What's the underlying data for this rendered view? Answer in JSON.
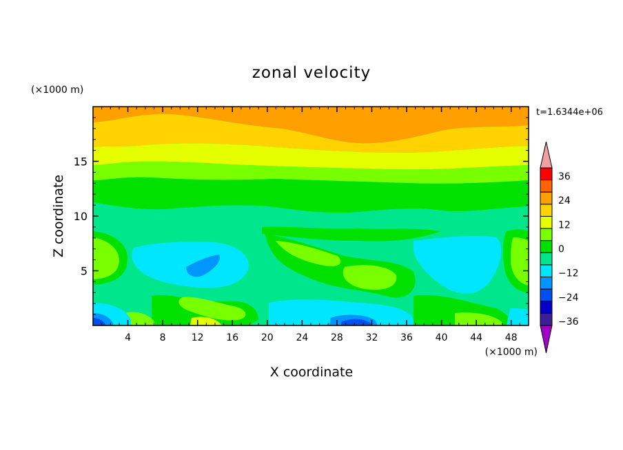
{
  "chart_data": {
    "type": "heatmap",
    "title": "zonal velocity",
    "xlabel": "X coordinate",
    "ylabel": "Z coordinate",
    "x_unit": "(×1000 m)",
    "y_unit": "(×1000 m)",
    "time_label": "t=1.6344e+06",
    "xlim": [
      0,
      50
    ],
    "ylim": [
      0,
      20
    ],
    "x_ticks": [
      4,
      8,
      12,
      16,
      20,
      24,
      28,
      32,
      36,
      40,
      44,
      48
    ],
    "x_tick_labels": [
      "4",
      "8",
      "12",
      "16",
      "20",
      "24",
      "28",
      "32",
      "36",
      "40",
      "44",
      "48"
    ],
    "y_ticks": [
      5,
      10,
      15
    ],
    "y_tick_labels": [
      "5",
      "10",
      "15"
    ],
    "colorbar": {
      "levels": [
        -36,
        -30,
        -24,
        -18,
        -12,
        -6,
        0,
        6,
        12,
        18,
        24,
        30,
        36
      ],
      "labels": [
        "36",
        "24",
        "12",
        "0",
        "−12",
        "−24",
        "−36"
      ],
      "label_values": [
        36,
        24,
        12,
        0,
        -12,
        -24,
        -36
      ],
      "colors": [
        "#a000c8",
        "#3c1e96",
        "#0000c8",
        "#0050f0",
        "#0096ff",
        "#00e6ff",
        "#00e68c",
        "#00e100",
        "#78ff00",
        "#e6ff00",
        "#ffd200",
        "#ffa000",
        "#ff6400",
        "#ff0000",
        "#f0a0a0"
      ]
    },
    "value_bands": [
      {
        "z_range": [
          19,
          20
        ],
        "zonal_velocity_approx": 21
      },
      {
        "z_range": [
          17,
          19
        ],
        "zonal_velocity_approx": 15
      },
      {
        "z_range": [
          15,
          17
        ],
        "zonal_velocity_approx": 12
      },
      {
        "z_range": [
          13,
          15
        ],
        "zonal_velocity_approx": 7
      },
      {
        "z_range": [
          10,
          13
        ],
        "zonal_velocity_approx": 1
      },
      {
        "z_range": [
          6,
          10
        ],
        "zonal_velocity_approx": -3
      },
      {
        "z_range": [
          2,
          6
        ],
        "zonal_velocity_approx": -6
      },
      {
        "z_range": [
          0,
          2
        ],
        "zonal_velocity_approx": -9
      }
    ]
  }
}
